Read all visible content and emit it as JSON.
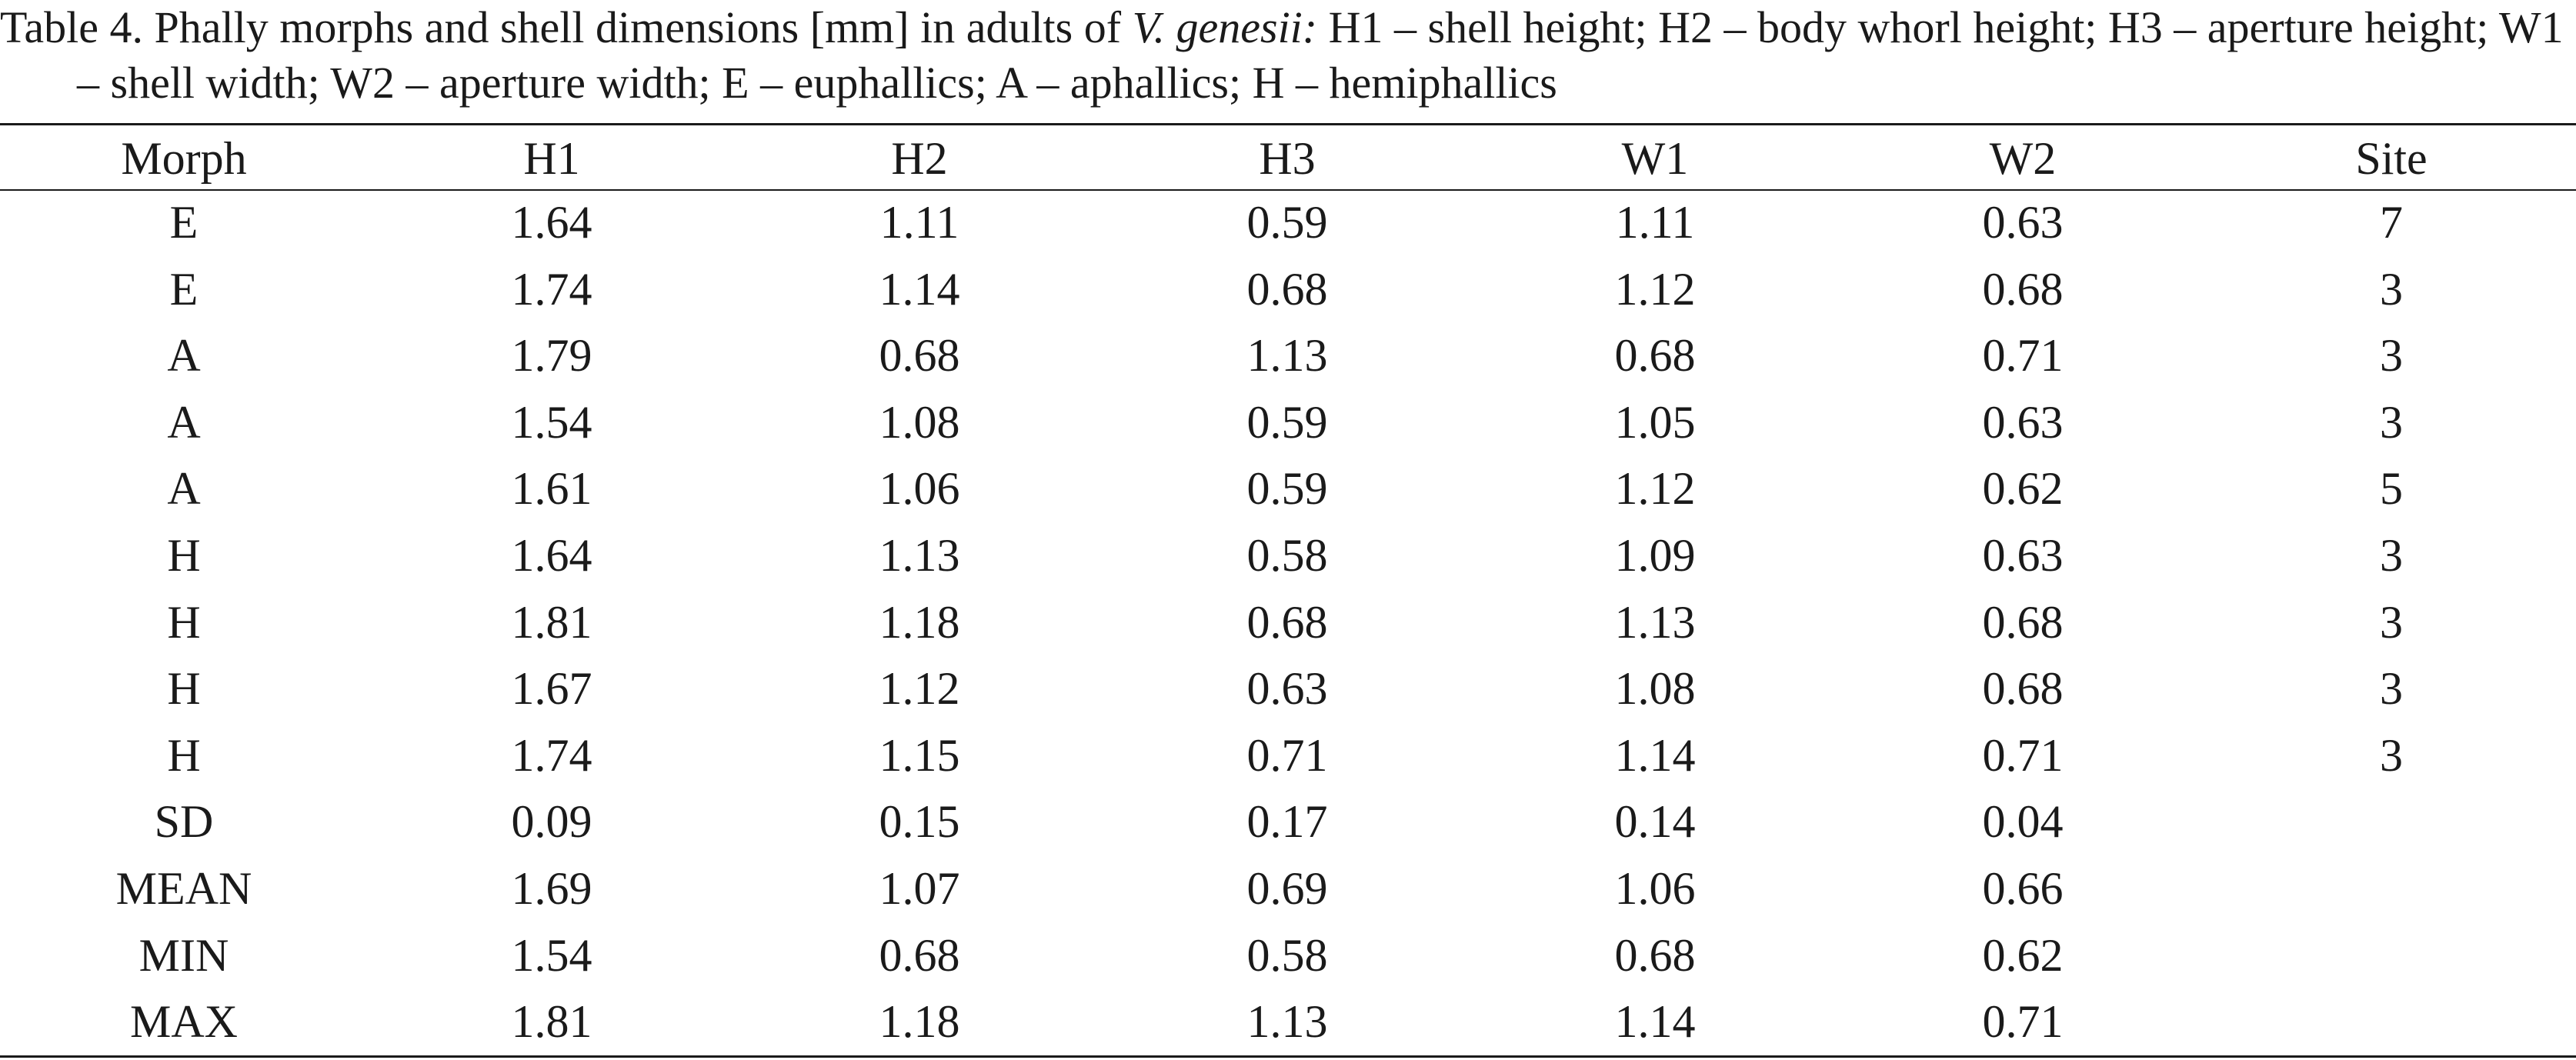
{
  "caption": {
    "prefix": "Table 4. Phally morphs and shell dimensions [mm] in adults of ",
    "species": "V. genesii:",
    "suffix": " H1 – shell height; H2 – body whorl height; H3 – aperture height; W1 – shell width; W2 – aperture width; E – euphallics; A – aphallics; H – hemiphallics"
  },
  "table": {
    "headers": [
      "Morph",
      "H1",
      "H2",
      "H3",
      "W1",
      "W2",
      "Site"
    ],
    "rows": [
      [
        "E",
        "1.64",
        "1.11",
        "0.59",
        "1.11",
        "0.63",
        "7"
      ],
      [
        "E",
        "1.74",
        "1.14",
        "0.68",
        "1.12",
        "0.68",
        "3"
      ],
      [
        "A",
        "1.79",
        "0.68",
        "1.13",
        "0.68",
        "0.71",
        "3"
      ],
      [
        "A",
        "1.54",
        "1.08",
        "0.59",
        "1.05",
        "0.63",
        "3"
      ],
      [
        "A",
        "1.61",
        "1.06",
        "0.59",
        "1.12",
        "0.62",
        "5"
      ],
      [
        "H",
        "1.64",
        "1.13",
        "0.58",
        "1.09",
        "0.63",
        "3"
      ],
      [
        "H",
        "1.81",
        "1.18",
        "0.68",
        "1.13",
        "0.68",
        "3"
      ],
      [
        "H",
        "1.67",
        "1.12",
        "0.63",
        "1.08",
        "0.68",
        "3"
      ],
      [
        "H",
        "1.74",
        "1.15",
        "0.71",
        "1.14",
        "0.71",
        "3"
      ],
      [
        "SD",
        "0.09",
        "0.15",
        "0.17",
        "0.14",
        "0.04",
        ""
      ],
      [
        "MEAN",
        "1.69",
        "1.07",
        "0.69",
        "1.06",
        "0.66",
        ""
      ],
      [
        "MIN",
        "1.54",
        "0.68",
        "0.58",
        "0.68",
        "0.62",
        ""
      ],
      [
        "MAX",
        "1.81",
        "1.18",
        "1.13",
        "1.14",
        "0.71",
        ""
      ]
    ]
  }
}
